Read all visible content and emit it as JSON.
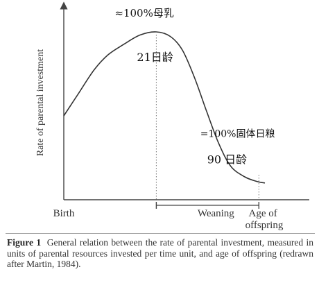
{
  "chart_data": {
    "type": "line",
    "ylabel": "Rate of parental investment",
    "xticks": [
      "Birth",
      "Weaning",
      "Age of\noffspring"
    ],
    "series": [
      {
        "points": [
          {
            "x": 0.0,
            "y": 0.45
          },
          {
            "x": 0.07,
            "y": 0.59
          },
          {
            "x": 0.15,
            "y": 0.75
          },
          {
            "x": 0.22,
            "y": 0.85
          },
          {
            "x": 0.3,
            "y": 0.92
          },
          {
            "x": 0.38,
            "y": 0.98
          },
          {
            "x": 0.46,
            "y": 1.0
          },
          {
            "x": 0.53,
            "y": 0.97
          },
          {
            "x": 0.59,
            "y": 0.88
          },
          {
            "x": 0.65,
            "y": 0.7
          },
          {
            "x": 0.71,
            "y": 0.48
          },
          {
            "x": 0.77,
            "y": 0.27
          },
          {
            "x": 0.83,
            "y": 0.12
          },
          {
            "x": 0.9,
            "y": 0.05
          },
          {
            "x": 0.96,
            "y": 0.02
          },
          {
            "x": 1.0,
            "y": 0.01
          }
        ]
      }
    ],
    "annotations": [
      {
        "text": "≈100%母乳",
        "x": 0.46,
        "y": 1.0
      },
      {
        "text": "21日龄",
        "x": 0.46,
        "y": 1.0
      },
      {
        "text": "=100%固体日粮",
        "x": 0.83,
        "y": 0.12
      },
      {
        "text": "90 日龄",
        "x": 0.83,
        "y": 0.12
      }
    ],
    "weaning_range": [
      0.46,
      0.97
    ]
  },
  "caption": {
    "label": "Figure 1",
    "text": "General relation between the rate of parental investment, measured in units of parental resources invested per time unit, and age of offspring (redrawn after Martin, 1984)."
  }
}
